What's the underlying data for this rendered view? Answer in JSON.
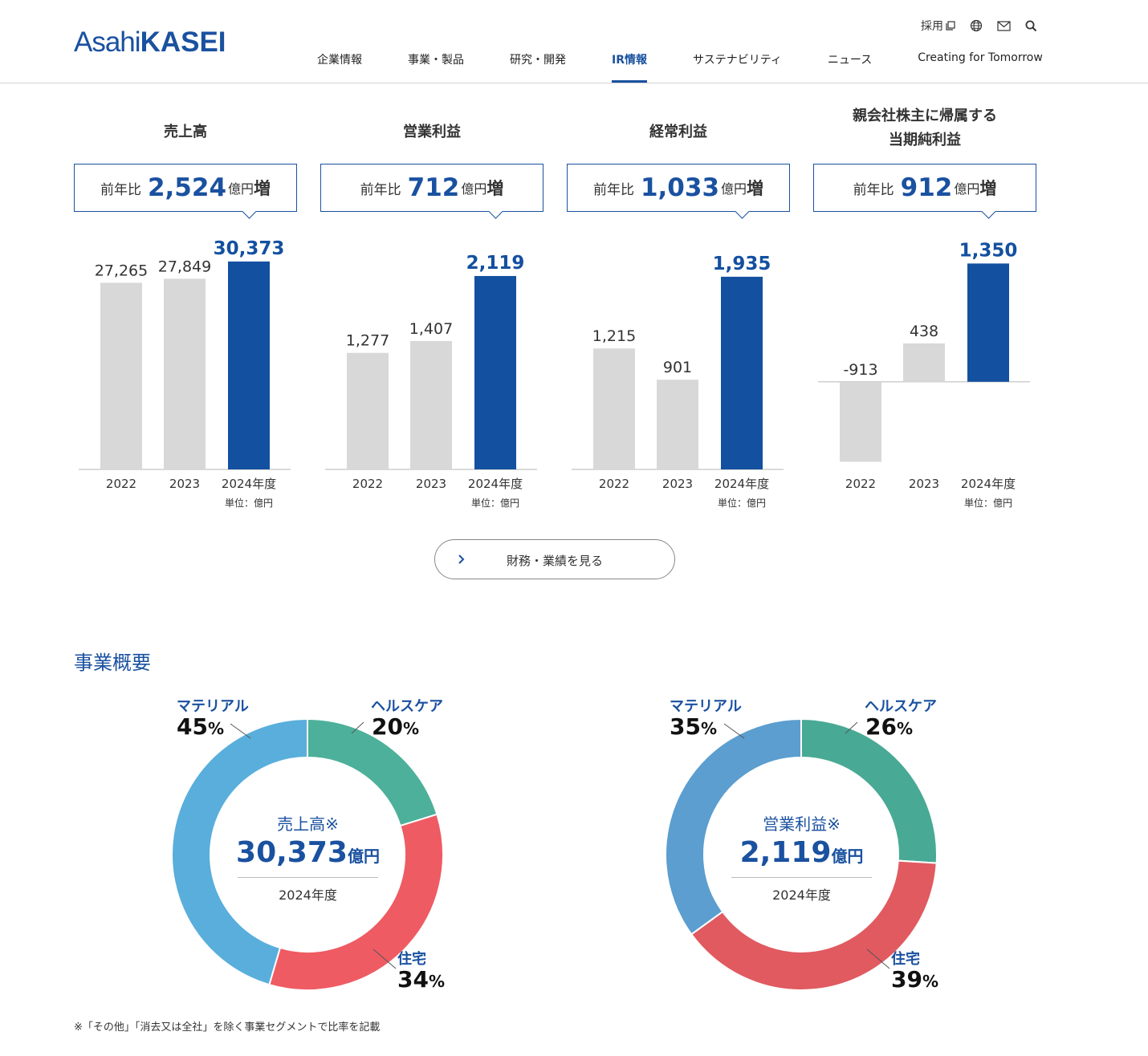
{
  "header": {
    "logo_part1": "Asahi",
    "logo_part2": "KASEI",
    "util": {
      "recruit_label": "採用"
    },
    "nav": [
      "企業情報",
      "事業・製品",
      "研究・開発",
      "IR情報",
      "サステナビリティ",
      "ニュース",
      "Creating for Tomorrow"
    ],
    "active_nav": "IR情報"
  },
  "kpis": [
    {
      "title": "売上高",
      "prefix": "前年比",
      "change": "2,524",
      "unit": "億円",
      "suffix": "増"
    },
    {
      "title": "営業利益",
      "prefix": "前年比",
      "change": "712",
      "unit": "億円",
      "suffix": "増"
    },
    {
      "title": "経常利益",
      "prefix": "前年比",
      "change": "1,033",
      "unit": "億円",
      "suffix": "増"
    },
    {
      "title_line1": "親会社株主に帰属する",
      "title_line2": "当期純利益",
      "prefix": "前年比",
      "change": "912",
      "unit": "億円",
      "suffix": "増"
    }
  ],
  "chart_data": [
    {
      "type": "bar",
      "title": "売上高",
      "categories": [
        "2022",
        "2023",
        "2024年度"
      ],
      "values": [
        27265,
        27849,
        30373
      ],
      "value_labels": [
        "27,265",
        "27,849",
        "30,373"
      ],
      "unit_note": "単位：億円",
      "highlight_index": 2,
      "ylim": [
        0,
        32000
      ]
    },
    {
      "type": "bar",
      "title": "営業利益",
      "categories": [
        "2022",
        "2023",
        "2024年度"
      ],
      "values": [
        1277,
        1407,
        2119
      ],
      "value_labels": [
        "1,277",
        "1,407",
        "2,119"
      ],
      "unit_note": "単位：億円",
      "highlight_index": 2,
      "ylim": [
        0,
        2400
      ]
    },
    {
      "type": "bar",
      "title": "経常利益",
      "categories": [
        "2022",
        "2023",
        "2024年度"
      ],
      "values": [
        1215,
        901,
        1935
      ],
      "value_labels": [
        "1,215",
        "901",
        "1,935"
      ],
      "unit_note": "単位：億円",
      "highlight_index": 2,
      "ylim": [
        0,
        2200
      ]
    },
    {
      "type": "bar",
      "title": "親会社株主に帰属する当期純利益",
      "categories": [
        "2022",
        "2023",
        "2024年度"
      ],
      "values": [
        -913,
        438,
        1350
      ],
      "value_labels": [
        "-913",
        "438",
        "1,350"
      ],
      "unit_note": "単位：億円",
      "highlight_index": 2,
      "ylim": [
        -1000,
        1500
      ]
    },
    {
      "type": "pie",
      "title": "売上高※",
      "categories": [
        "ヘルスケア",
        "住宅",
        "マテリアル"
      ],
      "values": [
        20,
        34,
        45
      ],
      "unit": "%",
      "center_value": "30,373",
      "center_unit": "億円",
      "center_year": "2024年度",
      "colors": [
        "#4db09a",
        "#ef5b63",
        "#59aedc"
      ]
    },
    {
      "type": "pie",
      "title": "営業利益※",
      "categories": [
        "ヘルスケア",
        "住宅",
        "マテリアル"
      ],
      "values": [
        26,
        39,
        35
      ],
      "unit": "%",
      "center_value": "2,119",
      "center_unit": "億円",
      "center_year": "2024年度",
      "colors": [
        "#48a994",
        "#e05a60",
        "#5b9ecf"
      ]
    }
  ],
  "colors": {
    "accent": "#1a51a0",
    "bar_gray": "#d8d8d8",
    "bar_blue": "#1450a0"
  },
  "button": {
    "label": "財務・業績を見る"
  },
  "section": {
    "title": "事業概要"
  },
  "footnote": "※「その他」「消去又は全社」を除く事業セグメントで比率を記載"
}
